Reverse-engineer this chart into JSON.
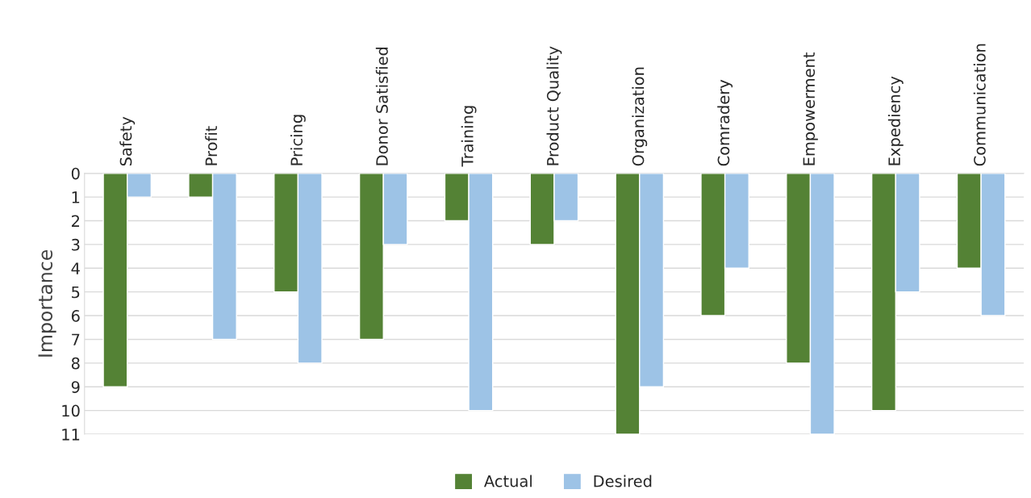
{
  "chart_data": {
    "type": "bar",
    "ylabel": "Importance",
    "categories": [
      "Safety",
      "Profit",
      "Pricing",
      "Donor Satisfied",
      "Training",
      "Product Quality",
      "Organization",
      "Comradery",
      "Empowerment",
      "Expediency",
      "Communication"
    ],
    "series": [
      {
        "name": "Actual",
        "color": "#548235",
        "values": [
          9,
          1,
          5,
          7,
          2,
          3,
          11,
          6,
          8,
          10,
          4
        ]
      },
      {
        "name": "Desired",
        "color": "#9dc3e6",
        "values": [
          1,
          7,
          8,
          3,
          10,
          2,
          9,
          4,
          11,
          5,
          6
        ]
      }
    ],
    "ylim": [
      11,
      0
    ],
    "yticks": [
      0,
      1,
      2,
      3,
      4,
      5,
      6,
      7,
      8,
      9,
      10,
      11
    ],
    "grid": "y",
    "legend": "bottom"
  }
}
